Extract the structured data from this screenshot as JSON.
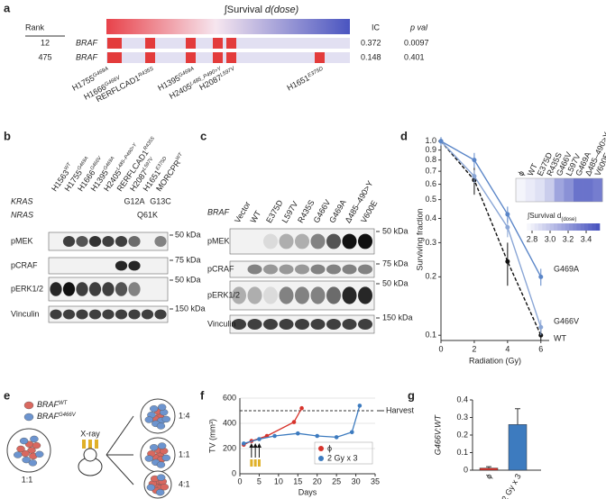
{
  "panel_labels": [
    "a",
    "b",
    "c",
    "d",
    "e",
    "f",
    "g"
  ],
  "panel_a": {
    "heading": "∫Survival",
    "heading_var": "d(dose)",
    "rank_label": "Rank",
    "ic_label": "IC",
    "pval_label": "p val",
    "rows": [
      {
        "rank": 12,
        "gene": "BRAF",
        "ic": 0.372,
        "pval": 0.0097
      },
      {
        "rank": 475,
        "gene": "BRAF",
        "ic": 0.148,
        "pval": 0.401
      }
    ],
    "cell_lines": [
      {
        "name": "H1755",
        "mutation": "G469A"
      },
      {
        "name": "H1666",
        "mutation": "G466V"
      },
      {
        "name": "RERFLCAD1",
        "mutation": "R435S"
      },
      {
        "name": "H1395",
        "mutation": "G469A"
      },
      {
        "name": "H2405",
        "mutation": "L485_P490>Y"
      },
      {
        "name": "H2087",
        "mutation": "L597V"
      },
      {
        "name": "H1651",
        "mutation": "E375D"
      }
    ]
  },
  "panel_b": {
    "cell_lines": [
      {
        "name": "H1563",
        "mutation": "WT"
      },
      {
        "name": "H1755",
        "mutation": "G469A"
      },
      {
        "name": "H1666",
        "mutation": "G466V"
      },
      {
        "name": "H1395",
        "mutation": "G469A"
      },
      {
        "name": "H2405",
        "mutation": "L485–P490>Y"
      },
      {
        "name": "RERFLCAD1",
        "mutation": "R435S"
      },
      {
        "name": "H2087",
        "mutation": "L597V"
      },
      {
        "name": "H1651",
        "mutation": "E375D"
      },
      {
        "name": "MORCPR",
        "mutation": "WT"
      }
    ],
    "genes": [
      {
        "name": "KRAS",
        "calls": [
          null,
          null,
          null,
          null,
          null,
          null,
          "G12A",
          null,
          "G13C"
        ]
      },
      {
        "name": "NRAS",
        "calls": [
          null,
          null,
          null,
          null,
          null,
          null,
          null,
          "Q61K",
          null
        ]
      }
    ],
    "blots": [
      {
        "name": "pMEK",
        "marker": "50 kDa"
      },
      {
        "name": "pCRAF",
        "marker": "75 kDa"
      },
      {
        "name": "pERK1/2",
        "marker": "50 kDa"
      },
      {
        "name": "Vinculin",
        "marker": "150 kDa"
      }
    ]
  },
  "panel_c": {
    "gene": "BRAF",
    "lanes": [
      "Vector",
      "WT",
      "E375D",
      "L597V",
      "R435S",
      "G466V",
      "G469A",
      "Δ485–490>Y",
      "V600E"
    ],
    "blots": [
      {
        "name": "pMEK",
        "marker": "50 kDa"
      },
      {
        "name": "pCRAF",
        "marker": "75 kDa"
      },
      {
        "name": "pERK1/2",
        "marker": "50 kDa"
      },
      {
        "name": "Vinculin",
        "marker": "150 kDa"
      }
    ]
  },
  "panel_e": {
    "legend": [
      {
        "gene": "BRAF",
        "allele": "WT"
      },
      {
        "gene": "BRAF",
        "allele": "G466V"
      }
    ],
    "treatment": "X-ray",
    "start_ratio": "1:1",
    "outcomes": [
      "1:4",
      "1:1",
      "4:1"
    ]
  },
  "chart_data": [
    {
      "type": "line",
      "xlabel": "Radiation (Gy)",
      "ylabel": "Surviving fraction",
      "yscale": "log",
      "xlim": [
        0,
        6.5
      ],
      "xticks": [
        0,
        2,
        4,
        6
      ],
      "ylim": [
        0.094,
        1.03
      ],
      "yticks": [
        0.1,
        0.2,
        0.3,
        0.4,
        0.5,
        0.6,
        0.7,
        0.8,
        0.9,
        {
          "value": 1,
          "label": "1.0"
        }
      ],
      "x": [
        0,
        2,
        4,
        6
      ],
      "series": [
        {
          "name": "WT",
          "color": "#111111",
          "dashed": true,
          "values": [
            1,
            0.63,
            0.24,
            0.1
          ],
          "errors": [
            0.02,
            0.1,
            0.06,
            0.01
          ]
        },
        {
          "name": "G466V",
          "color": "#8aa6d6",
          "values": [
            1,
            0.66,
            0.36,
            0.11
          ],
          "errors": [
            0.02,
            0.05,
            0.04,
            0.01
          ]
        },
        {
          "name": "G469A",
          "color": "#5b86c8",
          "values": [
            1,
            0.8,
            0.42,
            0.2
          ],
          "errors": [
            0.05,
            0.07,
            0.04,
            0.02
          ]
        }
      ]
    },
    {
      "type": "heatmap",
      "title": "∫Survival d",
      "title_sub": "(dose)",
      "categories": [
        "ϕ",
        "WT",
        "E375D",
        "R435S",
        "G466V",
        "L597V",
        "G469A",
        "Δ485–490>Y",
        "V600E"
      ],
      "values": [
        2.75,
        2.8,
        2.85,
        2.95,
        3.15,
        3.25,
        3.4,
        3.4,
        3.35
      ],
      "clim": [
        2.7,
        3.55
      ],
      "cticks": [
        {
          "value": 2.8,
          "label": "2.8"
        },
        {
          "value": 3,
          "label": "3.0"
        },
        {
          "value": 3.2,
          "label": "3.2"
        },
        {
          "value": 3.4,
          "label": "3.4"
        }
      ],
      "colors": [
        "#ffffff",
        "#4a55c0"
      ]
    },
    {
      "type": "line",
      "xlabel": "Days",
      "ylabel": "TV (mm³)",
      "xlim": [
        0,
        35
      ],
      "xticks": [
        0,
        5,
        10,
        15,
        20,
        25,
        30,
        35
      ],
      "ylim": [
        0,
        600
      ],
      "yticks": [
        0,
        200,
        400,
        600
      ],
      "grid": true,
      "annotation": {
        "value": 500,
        "label": "Harvest"
      },
      "treatment_days": [
        3,
        4,
        5
      ],
      "legend": "lower right",
      "series": [
        {
          "name": "ϕ",
          "color": "#d7332b",
          "x": [
            1,
            3,
            7,
            14,
            16
          ],
          "values": [
            230,
            260,
            300,
            410,
            520
          ]
        },
        {
          "name": "2 Gy x 3",
          "color": "#3d7bbf",
          "x": [
            1,
            5,
            9,
            15,
            20,
            25,
            29,
            31
          ],
          "values": [
            240,
            275,
            300,
            320,
            300,
            290,
            330,
            540
          ]
        }
      ]
    },
    {
      "type": "bar",
      "ylabel": "G466V:WT",
      "categories": [
        "ϕ",
        "2 Gy x 3"
      ],
      "values": [
        0.012,
        0.26
      ],
      "errors": [
        0.008,
        0.09
      ],
      "colors": [
        "#d7332b",
        "#3d7bbf"
      ],
      "ylim": [
        0,
        0.4
      ],
      "yticks": [
        0,
        0.1,
        0.2,
        0.3,
        0.4
      ]
    }
  ]
}
